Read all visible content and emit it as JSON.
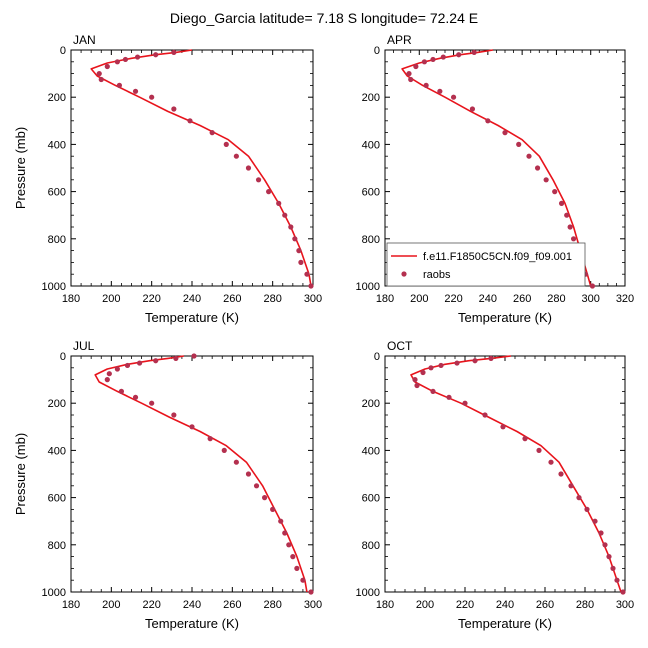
{
  "figure": {
    "title": "Diego_Garcia  latitude= 7.18 S longitude= 72.24 E"
  },
  "colors": {
    "model_line": "#e8141c",
    "raobs_marker": "#b4304f",
    "axes": "#000000",
    "background": "#ffffff"
  },
  "chart_data": [
    {
      "type": "line",
      "panel_label": "JAN",
      "xlabel": "Temperature (K)",
      "ylabel": "Pressure (mb)",
      "xlim": [
        180,
        300
      ],
      "ylim": [
        0,
        1000
      ],
      "y_inverted": true,
      "x_ticks": [
        180,
        200,
        220,
        240,
        260,
        280,
        300
      ],
      "y_ticks": [
        0,
        200,
        400,
        600,
        800,
        1000
      ],
      "series": [
        {
          "name": "f.e11.F1850C5CN.f09_f09.001",
          "kind": "line",
          "x": [
            240,
            232,
            222,
            210,
            198,
            190,
            193,
            202,
            214,
            228,
            244,
            258,
            268,
            276,
            283,
            289,
            294,
            298,
            299
          ],
          "y": [
            0,
            10,
            20,
            35,
            55,
            80,
            110,
            150,
            200,
            260,
            320,
            380,
            450,
            550,
            650,
            750,
            850,
            950,
            1000
          ]
        },
        {
          "name": "raobs",
          "kind": "points",
          "x": [
            231,
            222,
            213,
            207,
            203,
            198,
            194,
            195,
            204,
            212,
            220,
            231,
            239,
            250,
            257,
            262,
            268,
            273,
            278,
            283,
            286,
            289,
            291,
            293,
            294,
            297,
            299
          ],
          "y": [
            10,
            20,
            30,
            40,
            50,
            70,
            100,
            125,
            150,
            175,
            200,
            250,
            300,
            350,
            400,
            450,
            500,
            550,
            600,
            650,
            700,
            750,
            800,
            850,
            900,
            950,
            1000
          ]
        }
      ]
    },
    {
      "type": "line",
      "panel_label": "APR",
      "xlabel": "Temperature (K)",
      "ylabel": "",
      "xlim": [
        180,
        320
      ],
      "ylim": [
        0,
        1000
      ],
      "y_inverted": true,
      "x_ticks": [
        180,
        200,
        220,
        240,
        260,
        280,
        300,
        320
      ],
      "y_ticks": [
        0,
        200,
        400,
        600,
        800,
        1000
      ],
      "legend": {
        "placement": "bottom-right",
        "entries": [
          {
            "label": "f.e11.F1850C5CN.f09_f09.001",
            "style": "line"
          },
          {
            "label": "raobs",
            "style": "marker"
          }
        ]
      },
      "series": [
        {
          "name": "f.e11.F1850C5CN.f09_f09.001",
          "kind": "line",
          "x": [
            243,
            234,
            224,
            212,
            200,
            190,
            193,
            202,
            215,
            230,
            246,
            260,
            270,
            278,
            285,
            290,
            294,
            298,
            300
          ],
          "y": [
            0,
            10,
            20,
            35,
            55,
            80,
            110,
            150,
            200,
            260,
            320,
            380,
            450,
            550,
            650,
            750,
            850,
            950,
            1000
          ]
        },
        {
          "name": "raobs",
          "kind": "points",
          "x": [
            232,
            223,
            214,
            208,
            203,
            198,
            194,
            195,
            204,
            212,
            220,
            231,
            240,
            250,
            258,
            264,
            269,
            274,
            279,
            283,
            286,
            288,
            290,
            292,
            295,
            297,
            301
          ],
          "y": [
            10,
            20,
            30,
            40,
            50,
            70,
            100,
            125,
            150,
            175,
            200,
            250,
            300,
            350,
            400,
            450,
            500,
            550,
            600,
            650,
            700,
            750,
            800,
            850,
            900,
            950,
            1000
          ]
        }
      ]
    },
    {
      "type": "line",
      "panel_label": "JUL",
      "xlabel": "Temperature (K)",
      "ylabel": "Pressure (mb)",
      "xlim": [
        180,
        300
      ],
      "ylim": [
        0,
        1000
      ],
      "y_inverted": true,
      "x_ticks": [
        180,
        200,
        220,
        240,
        260,
        280,
        300
      ],
      "y_ticks": [
        0,
        200,
        400,
        600,
        800,
        1000
      ],
      "series": [
        {
          "name": "f.e11.F1850C5CN.f09_f09.001",
          "kind": "line",
          "x": [
            236,
            228,
            219,
            208,
            198,
            192,
            194,
            203,
            215,
            229,
            244,
            257,
            267,
            275,
            281,
            287,
            292,
            296,
            297
          ],
          "y": [
            0,
            10,
            20,
            35,
            55,
            80,
            110,
            150,
            200,
            260,
            320,
            380,
            450,
            550,
            650,
            750,
            850,
            950,
            1000
          ]
        },
        {
          "name": "raobs",
          "kind": "points",
          "x": [
            241,
            232,
            222,
            214,
            208,
            203,
            199,
            198,
            205,
            212,
            220,
            231,
            240,
            249,
            256,
            262,
            268,
            272,
            276,
            280,
            284,
            286,
            288,
            290,
            292,
            295,
            299
          ],
          "y": [
            0,
            10,
            20,
            30,
            40,
            55,
            75,
            100,
            150,
            175,
            200,
            250,
            300,
            350,
            400,
            450,
            500,
            550,
            600,
            650,
            700,
            750,
            800,
            850,
            900,
            950,
            1000
          ]
        }
      ]
    },
    {
      "type": "line",
      "panel_label": "OCT",
      "xlabel": "Temperature (K)",
      "ylabel": "",
      "xlim": [
        180,
        300
      ],
      "ylim": [
        0,
        1000
      ],
      "y_inverted": true,
      "x_ticks": [
        180,
        200,
        220,
        240,
        260,
        280,
        300
      ],
      "y_ticks": [
        0,
        200,
        400,
        600,
        800,
        1000
      ],
      "series": [
        {
          "name": "f.e11.F1850C5CN.f09_f09.001",
          "kind": "line",
          "x": [
            243,
            233,
            222,
            210,
            200,
            193,
            195,
            204,
            218,
            232,
            246,
            258,
            267,
            274,
            281,
            287,
            292,
            296,
            298
          ],
          "y": [
            0,
            10,
            20,
            35,
            55,
            80,
            110,
            150,
            200,
            260,
            320,
            380,
            450,
            550,
            650,
            750,
            850,
            950,
            1000
          ]
        },
        {
          "name": "raobs",
          "kind": "points",
          "x": [
            233,
            225,
            216,
            208,
            203,
            199,
            195,
            196,
            204,
            212,
            220,
            230,
            239,
            250,
            257,
            263,
            268,
            273,
            277,
            281,
            285,
            288,
            290,
            292,
            294,
            296,
            299
          ],
          "y": [
            10,
            20,
            30,
            40,
            50,
            70,
            100,
            125,
            150,
            175,
            200,
            250,
            300,
            350,
            400,
            450,
            500,
            550,
            600,
            650,
            700,
            750,
            800,
            850,
            900,
            950,
            1000
          ]
        }
      ]
    }
  ]
}
